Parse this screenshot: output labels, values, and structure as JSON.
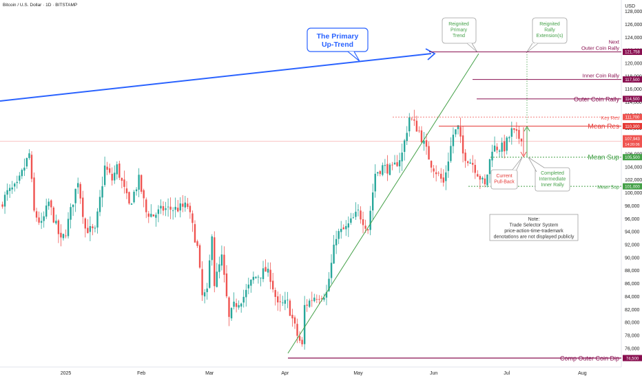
{
  "header": {
    "symbol_title": "Bitcoin / U.S. Dollar · 1D · BITSTAMP",
    "currency": "USD"
  },
  "colors": {
    "up": "#26a69a",
    "down": "#ef5350",
    "blue": "#2962ff",
    "green": "#43a047",
    "maroon": "#880e4f",
    "red": "#e53935",
    "gray": "#787b86"
  },
  "chart_data": {
    "type": "candlestick",
    "title": "Bitcoin / U.S. Dollar · 1D · BITSTAMP",
    "y_unit": "USD",
    "y_range": [
      73500,
      129000
    ],
    "y_ticks": [
      76000,
      78000,
      80000,
      82000,
      84000,
      86000,
      88000,
      90000,
      92000,
      94000,
      96000,
      98000,
      100000,
      102000,
      104000,
      106000,
      108000,
      110000,
      112000,
      114000,
      116000,
      118000,
      120000,
      122000,
      124000,
      126000,
      128000
    ],
    "y_tick_labels": [
      "76,000",
      "78,000",
      "80,000",
      "82,000",
      "84,000",
      "86,000",
      "88,000",
      "90,000",
      "92,000",
      "94,000",
      "96,000",
      "98,000",
      "100,000",
      "102,000",
      "104,000",
      "106,000",
      "108,000",
      "110,000",
      "112,000",
      "114,000",
      "116,000",
      "118,000",
      "120,000",
      "122,000",
      "124,000",
      "126,000",
      "128,000"
    ],
    "x_range": [
      "2024-12-05",
      "2025-08-17"
    ],
    "x_ticks": [
      {
        "date": "2025-01-01",
        "label": "2025"
      },
      {
        "date": "2025-02-01",
        "label": "Feb"
      },
      {
        "date": "2025-03-01",
        "label": "Mar"
      },
      {
        "date": "2025-04-01",
        "label": "Apr"
      },
      {
        "date": "2025-05-01",
        "label": "May"
      },
      {
        "date": "2025-06-01",
        "label": "Jun"
      },
      {
        "date": "2025-07-01",
        "label": "Jul"
      },
      {
        "date": "2025-08-01",
        "label": "Aug"
      }
    ],
    "close_path": [
      [
        "2024-12-05",
        98000
      ],
      [
        "2024-12-08",
        100000
      ],
      [
        "2024-12-12",
        101000
      ],
      [
        "2024-12-17",
        106000
      ],
      [
        "2024-12-19",
        97000
      ],
      [
        "2024-12-22",
        95000
      ],
      [
        "2024-12-25",
        98500
      ],
      [
        "2024-12-30",
        92500
      ],
      [
        "2025-01-01",
        94000
      ],
      [
        "2025-01-06",
        102000
      ],
      [
        "2025-01-09",
        94500
      ],
      [
        "2025-01-13",
        94000
      ],
      [
        "2025-01-17",
        104000
      ],
      [
        "2025-01-20",
        102000
      ],
      [
        "2025-01-22",
        104000
      ],
      [
        "2025-01-27",
        98000
      ],
      [
        "2025-01-31",
        102000
      ],
      [
        "2025-02-03",
        97000
      ],
      [
        "2025-02-06",
        96500
      ],
      [
        "2025-02-10",
        97500
      ],
      [
        "2025-02-15",
        97500
      ],
      [
        "2025-02-20",
        98000
      ],
      [
        "2025-02-24",
        91500
      ],
      [
        "2025-02-26",
        84000
      ],
      [
        "2025-02-28",
        84500
      ],
      [
        "2025-03-02",
        94000
      ],
      [
        "2025-03-03",
        86000
      ],
      [
        "2025-03-06",
        90000
      ],
      [
        "2025-03-09",
        80500
      ],
      [
        "2025-03-11",
        82500
      ],
      [
        "2025-03-15",
        84000
      ],
      [
        "2025-03-19",
        86800
      ],
      [
        "2025-03-24",
        88000
      ],
      [
        "2025-03-26",
        87000
      ],
      [
        "2025-03-29",
        82500
      ],
      [
        "2025-04-02",
        83000
      ],
      [
        "2025-04-06",
        78000
      ],
      [
        "2025-04-08",
        76300
      ],
      [
        "2025-04-09",
        82500
      ],
      [
        "2025-04-13",
        84000
      ],
      [
        "2025-04-18",
        84500
      ],
      [
        "2025-04-22",
        93500
      ],
      [
        "2025-04-26",
        94500
      ],
      [
        "2025-05-01",
        97000
      ],
      [
        "2025-05-05",
        94500
      ],
      [
        "2025-05-08",
        103000
      ],
      [
        "2025-05-11",
        104000
      ],
      [
        "2025-05-15",
        103500
      ],
      [
        "2025-05-19",
        106000
      ],
      [
        "2025-05-22",
        111700
      ],
      [
        "2025-05-26",
        109500
      ],
      [
        "2025-05-31",
        104500
      ],
      [
        "2025-06-05",
        101500
      ],
      [
        "2025-06-09",
        109000
      ],
      [
        "2025-06-11",
        110000
      ],
      [
        "2025-06-13",
        106000
      ],
      [
        "2025-06-17",
        104500
      ],
      [
        "2025-06-22",
        101000
      ],
      [
        "2025-06-25",
        107000
      ],
      [
        "2025-06-30",
        107000
      ],
      [
        "2025-07-03",
        109500
      ],
      [
        "2025-07-06",
        108500
      ],
      [
        "2025-07-07",
        107900
      ]
    ],
    "last_price": {
      "label": "107,943",
      "countdown": "14:20:06",
      "value": 107943
    },
    "current_price_line": 107943,
    "levels": [
      {
        "label": "Next\nOuter Coin Rally",
        "value": 121758,
        "tag": "121,758",
        "color": "#880e4f"
      },
      {
        "label": "Inner Coin Rally",
        "value": 117500,
        "tag": "117,500",
        "color": "#880e4f"
      },
      {
        "label": "Outer Coin Rally",
        "value": 114500,
        "tag": "114,500",
        "color": "#880e4f"
      },
      {
        "label": "Key Res",
        "value": 111700,
        "tag": "111,700",
        "color": "#ef5350"
      },
      {
        "label": "Mean Res",
        "value": 110300,
        "tag": "110,300",
        "color": "#e53935"
      },
      {
        "label": "Mean Sup",
        "value": 105500,
        "tag": "105,500",
        "color": "#43a047"
      },
      {
        "label": "Mean Sup",
        "value": 101000,
        "tag": "101,000",
        "color": "#43a047"
      },
      {
        "label": "Comp Outer Coin Dip",
        "value": 74500,
        "tag": "74,500",
        "color": "#880e4f"
      }
    ],
    "annotations": [
      {
        "label": "The Primary\nUp-Trend"
      },
      {
        "label": "Reignited\nPrimary\nTrend"
      },
      {
        "label": "Reignited\nRally\nExtension(s)"
      },
      {
        "label": "Current\nPull-Back"
      },
      {
        "label": "Completed\nIntermediate\nInner Rally"
      },
      {
        "label": "Note:\nTrade Selector System\nprice-action-time-trademark\ndenotations are not displayed publicly"
      }
    ]
  }
}
